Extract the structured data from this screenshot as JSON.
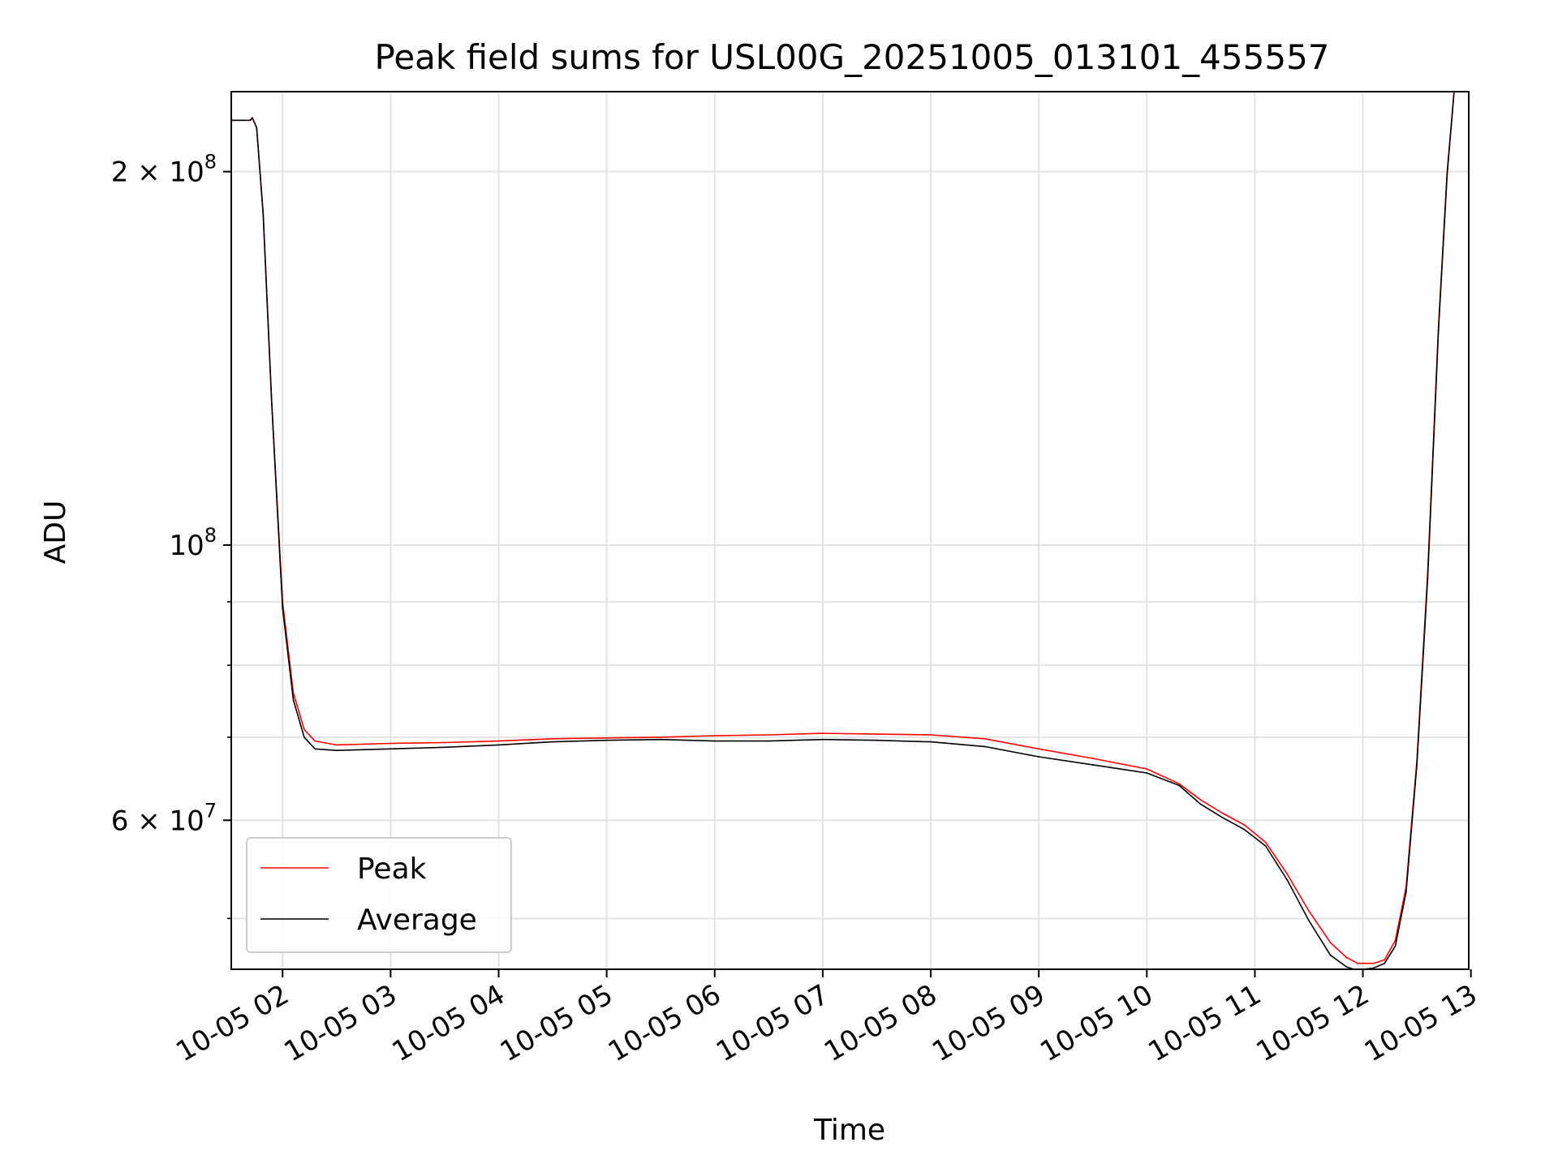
{
  "chart_data": {
    "type": "line",
    "title": "Peak field sums for USL00G_20251005_013101_455557",
    "xlabel": "Time",
    "ylabel": "ADU",
    "yscale": "log",
    "xlim_hours": [
      1.525,
      12.98
    ],
    "ylim": [
      45500000,
      232000000
    ],
    "grid": true,
    "legend_position": "lower-left",
    "x_ticks": [
      {
        "hour": 2,
        "label": "10-05 02"
      },
      {
        "hour": 3,
        "label": "10-05 03"
      },
      {
        "hour": 4,
        "label": "10-05 04"
      },
      {
        "hour": 5,
        "label": "10-05 05"
      },
      {
        "hour": 6,
        "label": "10-05 06"
      },
      {
        "hour": 7,
        "label": "10-05 07"
      },
      {
        "hour": 8,
        "label": "10-05 08"
      },
      {
        "hour": 9,
        "label": "10-05 09"
      },
      {
        "hour": 10,
        "label": "10-05 10"
      },
      {
        "hour": 11,
        "label": "10-05 11"
      },
      {
        "hour": 12,
        "label": "10-05 12"
      },
      {
        "hour": 13,
        "label": "10-05 13"
      }
    ],
    "y_major_ticks": [
      {
        "value": 200000000,
        "base": "2 × 10",
        "exp": "8"
      },
      {
        "value": 100000000,
        "base": "10",
        "exp": "8"
      },
      {
        "value": 60000000,
        "base": "6 × 10",
        "exp": "7"
      }
    ],
    "y_minor_ticks": [
      50000000,
      70000000,
      80000000,
      90000000
    ],
    "series": [
      {
        "name": "Peak",
        "color": "#ff0000",
        "x_hours": [
          1.53,
          1.6,
          1.7,
          1.72,
          1.76,
          1.82,
          1.9,
          2.0,
          2.1,
          2.2,
          2.3,
          2.5,
          3.0,
          3.5,
          4.0,
          4.5,
          5.0,
          5.5,
          6.0,
          6.5,
          7.0,
          7.5,
          8.0,
          8.5,
          9.0,
          9.5,
          10.0,
          10.3,
          10.5,
          10.7,
          10.9,
          11.1,
          11.3,
          11.5,
          11.7,
          11.85,
          11.95,
          12.0,
          12.1,
          12.2,
          12.3,
          12.4,
          12.5,
          12.6,
          12.7,
          12.78,
          12.85
        ],
        "y_values": [
          220000000,
          220000000,
          220000000,
          221000000,
          217000000,
          185000000,
          130000000,
          90000000,
          76000000,
          71000000,
          69500000,
          69000000,
          69200000,
          69300000,
          69500000,
          69800000,
          69900000,
          70000000,
          70200000,
          70300000,
          70500000,
          70400000,
          70300000,
          69800000,
          68500000,
          67300000,
          66000000,
          64200000,
          62300000,
          60800000,
          59500000,
          57600000,
          54300000,
          50700000,
          47800000,
          46500000,
          46000000,
          46000000,
          46000000,
          46300000,
          48000000,
          53000000,
          67000000,
          95000000,
          150000000,
          200000000,
          235000000
        ]
      },
      {
        "name": "Average",
        "color": "#000000",
        "x_hours": [
          1.53,
          1.6,
          1.7,
          1.72,
          1.76,
          1.82,
          1.9,
          2.0,
          2.1,
          2.2,
          2.3,
          2.5,
          3.0,
          3.5,
          4.0,
          4.5,
          5.0,
          5.5,
          6.0,
          6.5,
          7.0,
          7.5,
          8.0,
          8.5,
          9.0,
          9.5,
          10.0,
          10.3,
          10.5,
          10.7,
          10.9,
          11.1,
          11.3,
          11.5,
          11.7,
          11.85,
          11.95,
          12.0,
          12.1,
          12.2,
          12.3,
          12.4,
          12.5,
          12.6,
          12.7,
          12.78,
          12.85
        ],
        "y_values": [
          220000000,
          220000000,
          220000000,
          221000000,
          217000000,
          185000000,
          130000000,
          89000000,
          75000000,
          70000000,
          68500000,
          68300000,
          68500000,
          68700000,
          69000000,
          69400000,
          69600000,
          69700000,
          69500000,
          69500000,
          69700000,
          69600000,
          69400000,
          68800000,
          67500000,
          66500000,
          65500000,
          64000000,
          61800000,
          60300000,
          59000000,
          57200000,
          53700000,
          49800000,
          46700000,
          45700000,
          45400000,
          45500000,
          45600000,
          46000000,
          47500000,
          52500000,
          66500000,
          94000000,
          149000000,
          199000000,
          235000000
        ]
      }
    ]
  }
}
